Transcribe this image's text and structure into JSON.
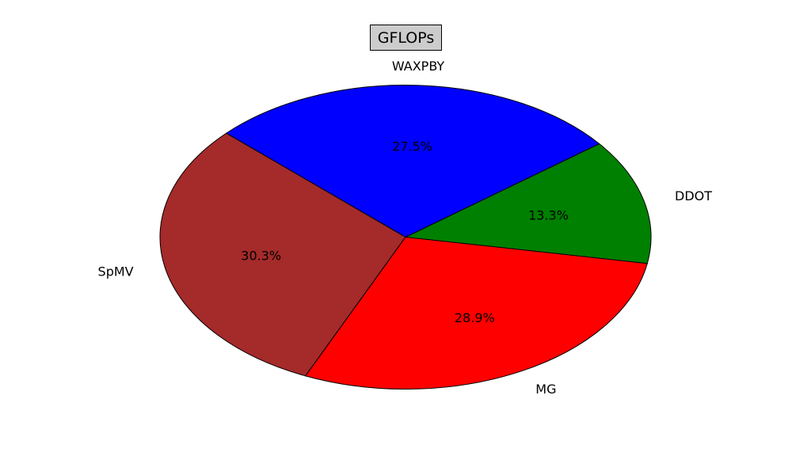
{
  "chart_data": {
    "type": "pie",
    "title": "GFLOPs",
    "slices": [
      {
        "label": "DDOT",
        "value": 13.3,
        "pct_label": "13.3%",
        "color": "#008000"
      },
      {
        "label": "WAXPBY",
        "value": 27.5,
        "pct_label": "27.5%",
        "color": "#0000ff"
      },
      {
        "label": "SpMV",
        "value": 30.3,
        "pct_label": "30.3%",
        "color": "#a52a2a"
      },
      {
        "label": "MG",
        "value": 28.9,
        "pct_label": "28.9%",
        "color": "#ff0000"
      }
    ],
    "start_angle_deg": -10,
    "direction": "counterclockwise",
    "legend": "none"
  }
}
